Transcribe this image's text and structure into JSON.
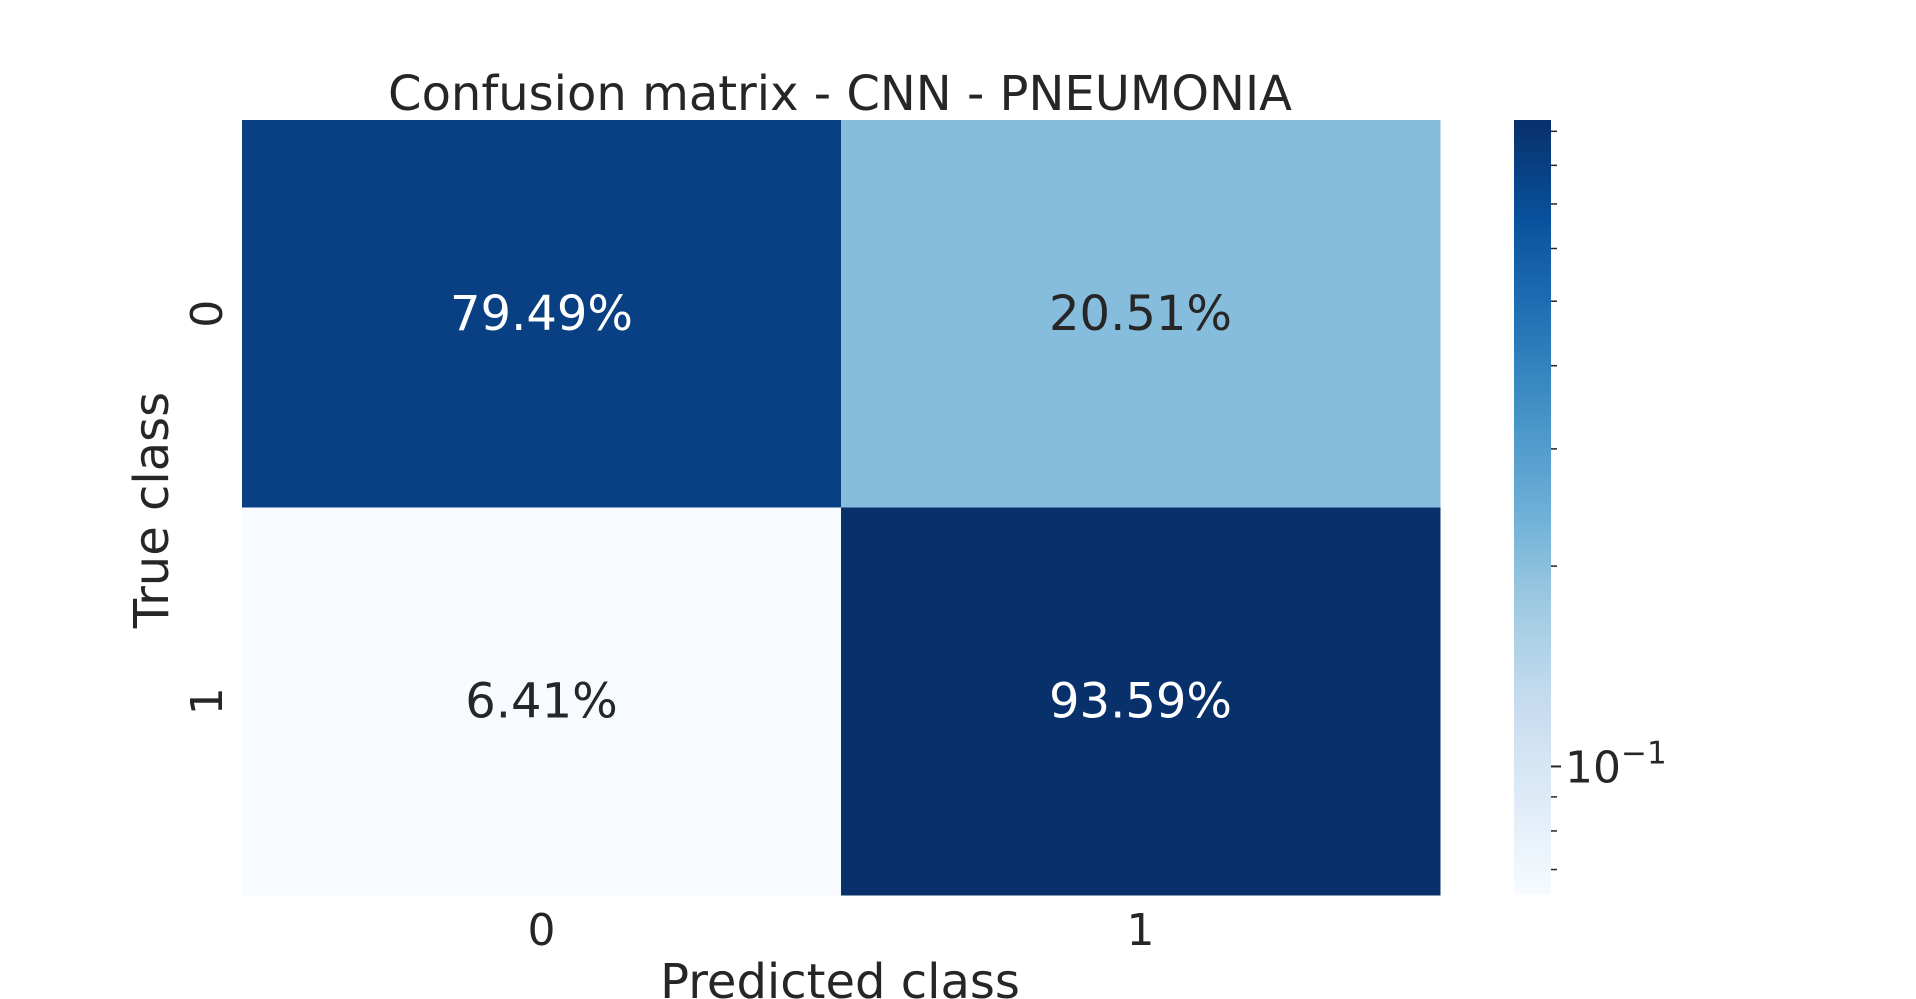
{
  "chart_data": {
    "type": "heatmap",
    "title": "Confusion matrix - CNN - PNEUMONIA",
    "xlabel": "Predicted class",
    "ylabel": "True class",
    "x_categories": [
      "0",
      "1"
    ],
    "y_categories": [
      "0",
      "1"
    ],
    "values": [
      [
        0.7949,
        0.2051
      ],
      [
        0.0641,
        0.9359
      ]
    ],
    "annotations": [
      [
        "79.49%",
        "20.51%"
      ],
      [
        "6.41%",
        "93.59%"
      ]
    ],
    "colormap": "Blues",
    "colorbar": {
      "scale": "log",
      "range": [
        0.0641,
        0.9359
      ],
      "major_tick": 0.1,
      "major_tick_label_base": "10",
      "major_tick_label_exp": "−1",
      "minor_ticks": [
        0.07,
        0.08,
        0.09,
        0.2,
        0.3,
        0.4,
        0.5,
        0.6,
        0.7,
        0.8,
        0.9
      ]
    },
    "grid": false
  }
}
